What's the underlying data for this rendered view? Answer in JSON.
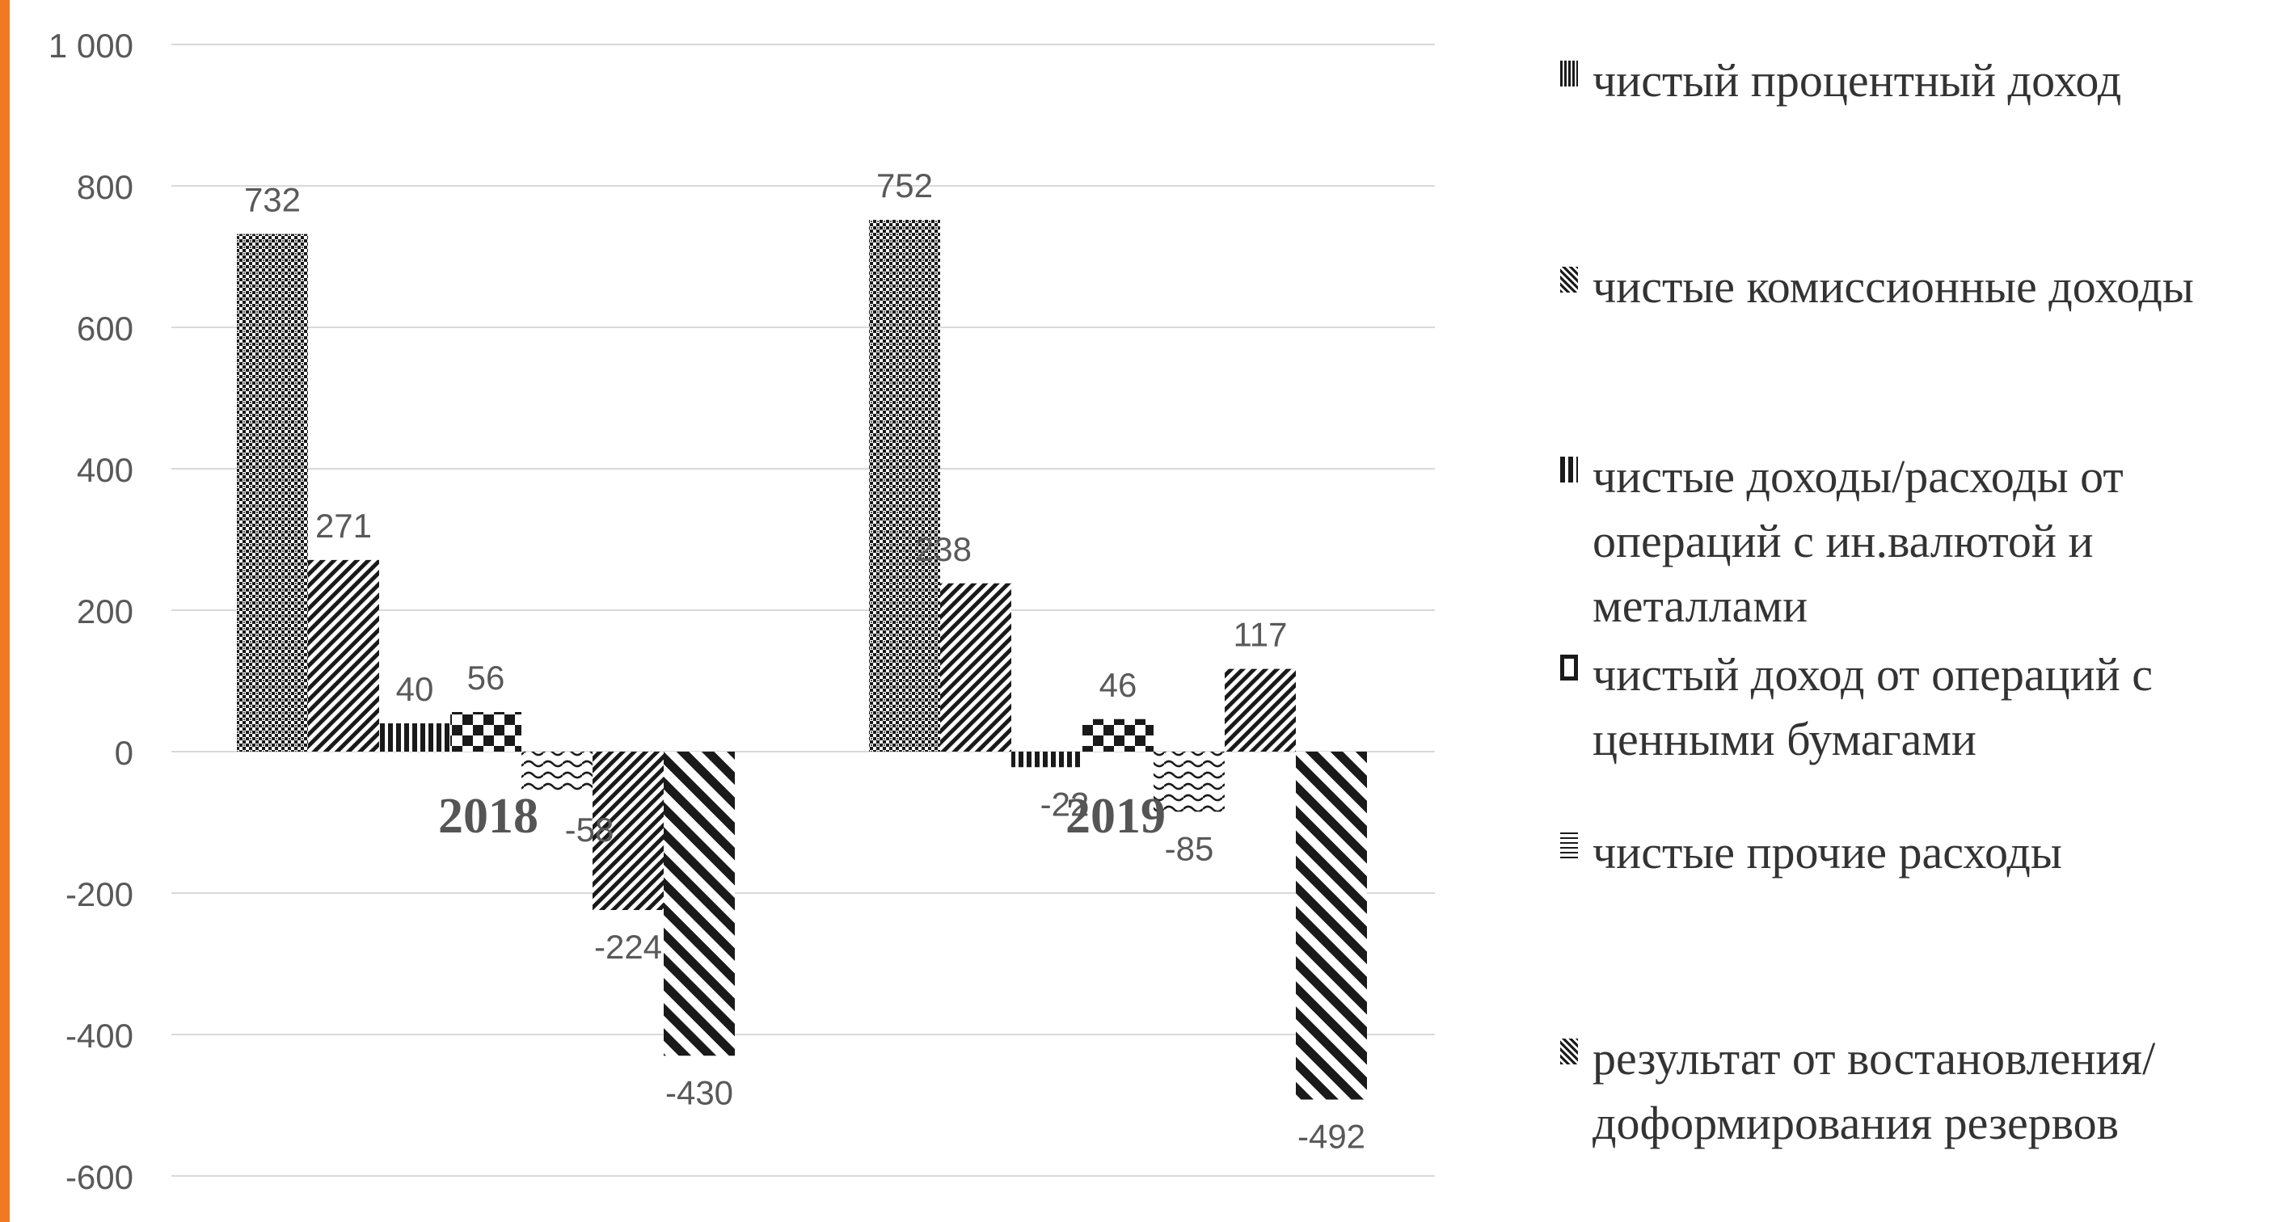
{
  "chart_data": {
    "type": "bar",
    "categories": [
      "2018",
      "2019"
    ],
    "ylim": [
      -600,
      1000
    ],
    "yticks": [
      1000,
      800,
      600,
      400,
      200,
      0,
      -200,
      -400,
      -600
    ],
    "ytick_labels": [
      "1 000",
      "800",
      "600",
      "400",
      "200",
      "0",
      "-200",
      "-400",
      "-600"
    ],
    "grid": true,
    "legend_position": "right",
    "series": [
      {
        "name": "чистый процентный доход",
        "values": [
          732,
          752
        ],
        "labels": [
          "732",
          "752"
        ],
        "pattern": "dots"
      },
      {
        "name": "чистые комиссионные доходы",
        "values": [
          271,
          238
        ],
        "labels": [
          "271",
          "238"
        ],
        "pattern": "diag-right"
      },
      {
        "name": "чистые доходы/расходы от операций с ин.валютой и металлами",
        "values": [
          40,
          -22
        ],
        "labels": [
          "40",
          "-22"
        ],
        "pattern": "vertical"
      },
      {
        "name": "чистый доход от операций с ценными бумагами",
        "values": [
          56,
          46
        ],
        "labels": [
          "56",
          "46"
        ],
        "pattern": "checker"
      },
      {
        "name": "чистые прочие расходы",
        "values": [
          -58,
          -85
        ],
        "labels": [
          "-58",
          "-85"
        ],
        "pattern": "wave"
      },
      {
        "name": "результат от востановления/доформирования резервов",
        "values": [
          -224,
          117
        ],
        "labels": [
          "-224",
          "117"
        ],
        "pattern": "diag-right"
      },
      {
        "name": "",
        "values": [
          -430,
          -492
        ],
        "labels": [
          "-430",
          "-492"
        ],
        "pattern": "diag-left"
      }
    ]
  },
  "legend": {
    "items": [
      {
        "label": "чистый процентный доход",
        "pattern": "dots"
      },
      {
        "label": "чистые комиссионные доходы",
        "pattern": "diag-right"
      },
      {
        "label": "чистые доходы/расходы от операций с ин.валютой и металлами",
        "pattern": "vertical"
      },
      {
        "label": "чистый доход от операций с ценными бумагами",
        "pattern": "checker"
      },
      {
        "label": "чистые прочие расходы",
        "pattern": "wave"
      },
      {
        "label": "результат от востановления/доформирования резервов",
        "pattern": "diag-right"
      }
    ]
  },
  "colors": {
    "bar_ink": "#1a1a1a",
    "grid": "#d9d9d9",
    "axis_text": "#595959",
    "accent_border": "#f07a22"
  }
}
